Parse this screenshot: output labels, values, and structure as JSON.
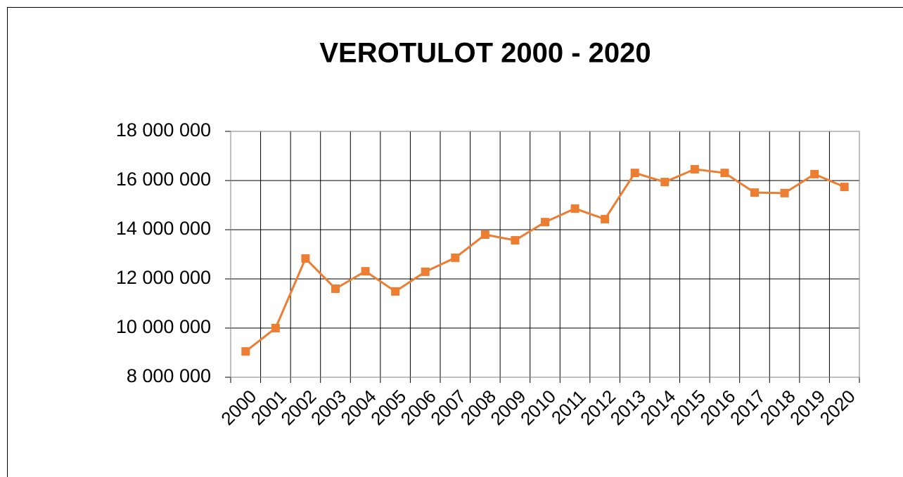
{
  "chart_data": {
    "type": "line",
    "title": "VEROTULOT  2000  -  2020",
    "categories": [
      "2000",
      "2001",
      "2002",
      "2003",
      "2004",
      "2005",
      "2006",
      "2007",
      "2008",
      "2009",
      "2010",
      "2011",
      "2012",
      "2013",
      "2014",
      "2015",
      "2016",
      "2017",
      "2018",
      "2019",
      "2020"
    ],
    "series": [
      {
        "name": "Verotulot",
        "color": "#ed7d31",
        "values": [
          9050000,
          10000000,
          12830000,
          11600000,
          12310000,
          11490000,
          12290000,
          12860000,
          13800000,
          13570000,
          14310000,
          14860000,
          14430000,
          16310000,
          15940000,
          16460000,
          16310000,
          15510000,
          15490000,
          16260000,
          15740000
        ]
      }
    ],
    "ylim": [
      8000000,
      18000000
    ],
    "yticks": [
      {
        "value": 8000000,
        "label": "8 000 000"
      },
      {
        "value": 10000000,
        "label": "10 000 000"
      },
      {
        "value": 12000000,
        "label": "12 000 000"
      },
      {
        "value": 14000000,
        "label": "14 000 000"
      },
      {
        "value": 16000000,
        "label": "16 000 000"
      },
      {
        "value": 18000000,
        "label": "18 000 000"
      }
    ],
    "grid": true,
    "legend": false
  }
}
